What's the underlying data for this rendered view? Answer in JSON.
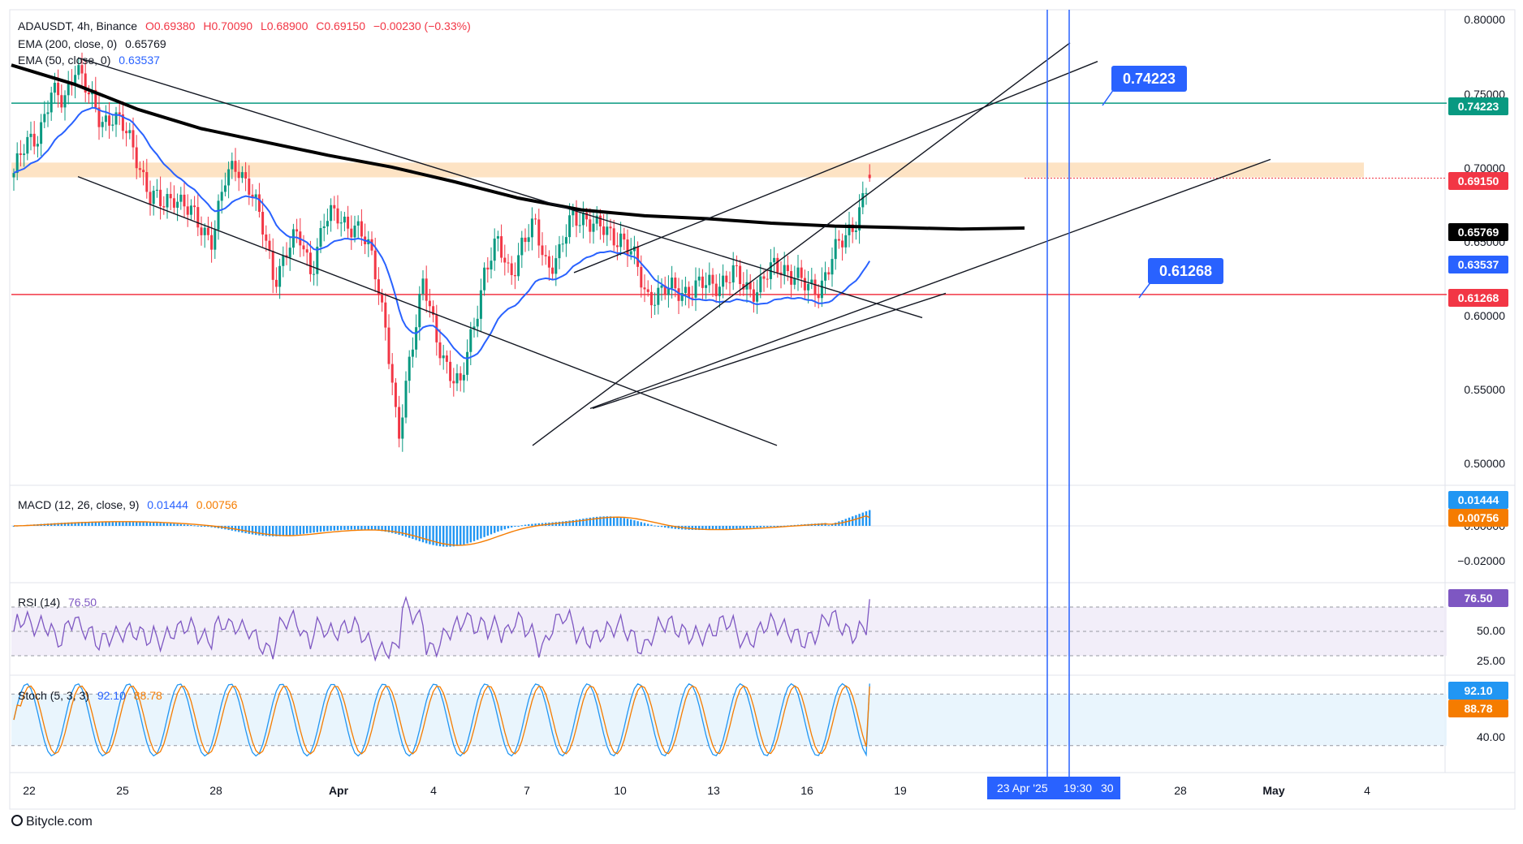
{
  "header": {
    "symbol": "ADAUSDT, 4h, Binance",
    "open": "O0.69380",
    "high": "H0.70090",
    "low": "L0.68900",
    "close": "C0.69150",
    "change": "−0.00230 (−0.33%)"
  },
  "indicators": {
    "ema200_label": "EMA (200, close, 0)",
    "ema200_value": "0.65769",
    "ema50_label": "EMA (50, close, 0)",
    "ema50_value": "0.63537",
    "macd_label": "MACD (12, 26, close, 9)",
    "macd_value": "0.01444",
    "macd_signal": "0.00756",
    "rsi_label": "RSI (14)",
    "rsi_value": "76.50",
    "stoch_label": "Stoch (5, 3, 3)",
    "stoch_k": "92.10",
    "stoch_d": "88.78"
  },
  "price_axis": [
    "0.80000",
    "0.75000",
    "0.70000",
    "0.65000",
    "0.60000",
    "0.55000",
    "0.50000"
  ],
  "macd_axis": [
    "0.00000",
    "−0.02000"
  ],
  "rsi_axis": [
    "50.00",
    "25.00"
  ],
  "stoch_axis": [
    "40.00"
  ],
  "tags": {
    "resistance": "0.74223",
    "close": "0.69150",
    "ema200": "0.65769",
    "ema50": "0.63537",
    "support": "0.61268",
    "macd": "0.01444",
    "signal": "0.00756",
    "rsi": "76.50",
    "stoch_k": "92.10",
    "stoch_d": "88.78"
  },
  "callouts": {
    "resistance": "0.74223",
    "support": "0.61268"
  },
  "time_axis": [
    "22",
    "25",
    "28",
    "Apr",
    "4",
    "7",
    "10",
    "13",
    "16",
    "19",
    "28",
    "May",
    "4"
  ],
  "time_axis_highlight": {
    "date": "23 Apr '25",
    "time": "19:30",
    "next": "30"
  },
  "brand": "Bitycle.com",
  "colors": {
    "up": "#089981",
    "down": "#f23645",
    "ema50": "#2962ff",
    "ema200": "#000000",
    "resistance_line": "#089981",
    "support_line": "#f23645",
    "zone": "#fde3c4",
    "macd_signal": "#f57c00",
    "histogram": "#2196f3",
    "rsi": "#7e57c2",
    "stoch_k": "#2196f3",
    "stoch_d": "#f57c00"
  },
  "chart_data": {
    "type": "candlestick",
    "symbol": "ADAUSDT",
    "timeframe": "4h",
    "exchange": "Binance",
    "ylim": [
      0.49,
      0.81
    ],
    "last_ohlc": {
      "open": 0.6938,
      "high": 0.7009,
      "low": 0.689,
      "close": 0.6915
    },
    "ema200_last": 0.65769,
    "ema50_last": 0.63537,
    "horizontal_levels": [
      {
        "value": 0.74223,
        "color": "green"
      },
      {
        "value": 0.61268,
        "color": "red"
      }
    ],
    "resistance_zone": [
      0.692,
      0.702
    ],
    "close_anchors": [
      [
        0.695,
        0.713,
        0.723,
        0.748,
        0.742,
        0.771,
        0.747,
        0.73,
        0.735,
        0.722
      ],
      [
        0.705,
        0.679,
        0.672,
        0.682,
        0.67,
        0.658,
        0.652,
        0.688,
        0.701,
        0.687
      ],
      [
        0.658,
        0.624,
        0.642,
        0.652,
        0.63,
        0.66,
        0.668,
        0.661,
        0.652,
        0.638
      ],
      [
        0.59,
        0.51,
        0.577,
        0.622,
        0.582,
        0.565,
        0.549,
        0.588,
        0.632,
        0.646
      ],
      [
        0.626,
        0.648,
        0.658,
        0.633,
        0.64,
        0.664,
        0.667,
        0.657,
        0.654,
        0.652
      ],
      [
        0.636,
        0.612,
        0.614,
        0.615,
        0.616,
        0.617,
        0.619,
        0.622,
        0.626,
        0.617
      ],
      [
        0.618,
        0.628,
        0.632,
        0.626,
        0.615,
        0.619,
        0.638,
        0.65,
        0.667,
        0.691
      ]
    ],
    "macd_last": {
      "macd": 0.01444,
      "signal": 0.00756
    },
    "rsi_last": 76.5,
    "stoch_last": {
      "k": 92.1,
      "d": 88.78
    }
  }
}
